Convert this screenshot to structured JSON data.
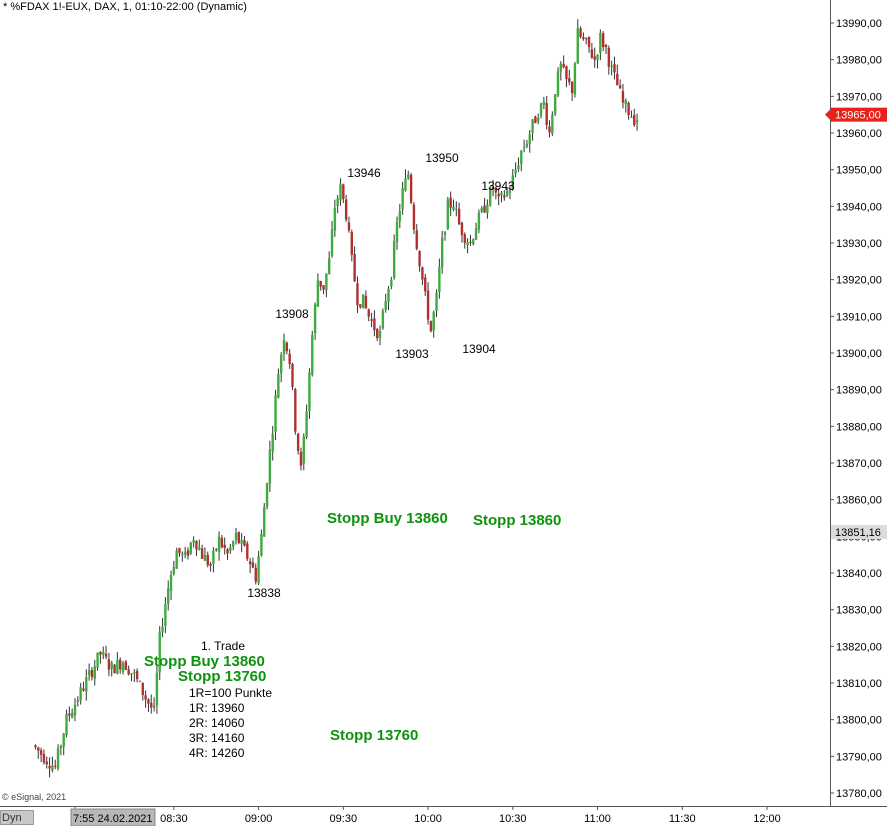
{
  "title": "* %FDAX 1!-EUX, DAX, 1, 01:10-22:00 (Dynamic)",
  "copyright": "© eSignal, 2021",
  "dyn_label": "Dyn",
  "colors": {
    "up": "#3dab3d",
    "down": "#b03030",
    "current_badge": "#e8221a",
    "wick": "#333333"
  },
  "chart_data": {
    "type": "candlestick",
    "title": "* %FDAX 1!-EUX, DAX, 1, 01:10-22:00 (Dynamic)",
    "ylim": [
      13776,
      14002
    ],
    "y_ticks": [
      13780,
      13790,
      13800,
      13810,
      13820,
      13830,
      13840,
      13850,
      13860,
      13870,
      13880,
      13890,
      13900,
      13910,
      13920,
      13930,
      13940,
      13950,
      13960,
      13970,
      13980,
      13990
    ],
    "y_tick_labels": [
      "13780,00",
      "13790,00",
      "13800,00",
      "13810,00",
      "13820,00",
      "13830,00",
      "13840,00",
      "13850,00",
      "13860,00",
      "13870,00",
      "13880,00",
      "13890,00",
      "13900,00",
      "13910,00",
      "13920,00",
      "13930,00",
      "13940,00",
      "13950,00",
      "13960,00",
      "13970,00",
      "13980,00",
      "13990,00"
    ],
    "x_ticks": [
      {
        "label": "7:55 24.02.2021",
        "minute": 0,
        "highlight": true
      },
      {
        "label": "08:30",
        "minute": 35
      },
      {
        "label": "09:00",
        "minute": 65
      },
      {
        "label": "09:30",
        "minute": 95
      },
      {
        "label": "10:00",
        "minute": 125
      },
      {
        "label": "10:30",
        "minute": 155
      },
      {
        "label": "11:00",
        "minute": 185
      },
      {
        "label": "11:30",
        "minute": 215
      },
      {
        "label": "12:00",
        "minute": 245
      }
    ],
    "x_range_minutes": [
      -14,
      258
    ],
    "current_price": {
      "value": 13965,
      "label": "13965,00"
    },
    "marker_price": {
      "value": 13851.16,
      "label": "13851,16"
    },
    "path": [
      [
        -14,
        13793
      ],
      [
        -10,
        13790
      ],
      [
        -6,
        13787
      ],
      [
        -2,
        13800
      ],
      [
        2,
        13806
      ],
      [
        6,
        13812
      ],
      [
        10,
        13818
      ],
      [
        14,
        13814
      ],
      [
        18,
        13816
      ],
      [
        22,
        13812
      ],
      [
        26,
        13806
      ],
      [
        29,
        13802
      ],
      [
        31,
        13822
      ],
      [
        33,
        13832
      ],
      [
        35,
        13840
      ],
      [
        37,
        13846
      ],
      [
        40,
        13844
      ],
      [
        43,
        13850
      ],
      [
        46,
        13845
      ],
      [
        49,
        13842
      ],
      [
        52,
        13849
      ],
      [
        55,
        13845
      ],
      [
        58,
        13850
      ],
      [
        61,
        13846
      ],
      [
        63,
        13843
      ],
      [
        65,
        13839
      ],
      [
        67,
        13850
      ],
      [
        69,
        13866
      ],
      [
        71,
        13880
      ],
      [
        73,
        13895
      ],
      [
        75,
        13905
      ],
      [
        77,
        13898
      ],
      [
        79,
        13880
      ],
      [
        81,
        13868
      ],
      [
        83,
        13885
      ],
      [
        85,
        13905
      ],
      [
        87,
        13920
      ],
      [
        89,
        13918
      ],
      [
        91,
        13925
      ],
      [
        93,
        13940
      ],
      [
        95,
        13945
      ],
      [
        97,
        13938
      ],
      [
        99,
        13925
      ],
      [
        101,
        13915
      ],
      [
        103,
        13914
      ],
      [
        105,
        13910
      ],
      [
        107,
        13907
      ],
      [
        109,
        13905
      ],
      [
        111,
        13915
      ],
      [
        113,
        13922
      ],
      [
        115,
        13935
      ],
      [
        117,
        13944
      ],
      [
        119,
        13949
      ],
      [
        121,
        13935
      ],
      [
        123,
        13925
      ],
      [
        125,
        13915
      ],
      [
        127,
        13906
      ],
      [
        129,
        13915
      ],
      [
        131,
        13930
      ],
      [
        133,
        13940
      ],
      [
        135,
        13941
      ],
      [
        137,
        13935
      ],
      [
        139,
        13932
      ],
      [
        141,
        13930
      ],
      [
        143,
        13935
      ],
      [
        145,
        13938
      ],
      [
        147,
        13942
      ],
      [
        149,
        13945
      ],
      [
        151,
        13941
      ],
      [
        153,
        13943
      ],
      [
        155,
        13945
      ],
      [
        157,
        13950
      ],
      [
        159,
        13955
      ],
      [
        161,
        13958
      ],
      [
        163,
        13962
      ],
      [
        165,
        13966
      ],
      [
        167,
        13968
      ],
      [
        169,
        13960
      ],
      [
        171,
        13972
      ],
      [
        173,
        13978
      ],
      [
        175,
        13974
      ],
      [
        177,
        13972
      ],
      [
        179,
        13987
      ],
      [
        181,
        13985
      ],
      [
        183,
        13983
      ],
      [
        185,
        13980
      ],
      [
        187,
        13986
      ],
      [
        189,
        13983
      ],
      [
        191,
        13977
      ],
      [
        193,
        13973
      ],
      [
        195,
        13968
      ],
      [
        197,
        13966
      ],
      [
        199,
        13964
      ]
    ],
    "annotations": [
      {
        "text": "13946",
        "price": 13946,
        "minute": 95
      },
      {
        "text": "13950",
        "price": 13950,
        "minute": 119
      },
      {
        "text": "13943",
        "price": 13943,
        "minute": 139
      },
      {
        "text": "13908",
        "price": 13908,
        "minute": 73
      },
      {
        "text": "13903",
        "price": 13903,
        "minute": 108
      },
      {
        "text": "13904",
        "price": 13904,
        "minute": 127
      },
      {
        "text": "13838",
        "price": 13838,
        "minute": 65
      },
      {
        "text": "Stopp Buy 13860",
        "price": 13860,
        "minute": 97,
        "style": "green"
      },
      {
        "text": "Stopp 13860",
        "price": 13860,
        "minute": 121,
        "style": "green"
      },
      {
        "text": "Stopp Buy 13860",
        "price": 13819,
        "minute": 45,
        "style": "green"
      },
      {
        "text": "Stopp 13760",
        "price": 13815,
        "minute": 47,
        "style": "green"
      },
      {
        "text": "Stopp 13760",
        "price": 13797,
        "minute": 95,
        "style": "green"
      }
    ],
    "trade_box": {
      "lines": [
        "1. Trade",
        "1R=100 Punkte",
        "1R: 13960",
        "2R: 14060",
        "3R: 14160",
        "4R: 14260"
      ]
    }
  }
}
